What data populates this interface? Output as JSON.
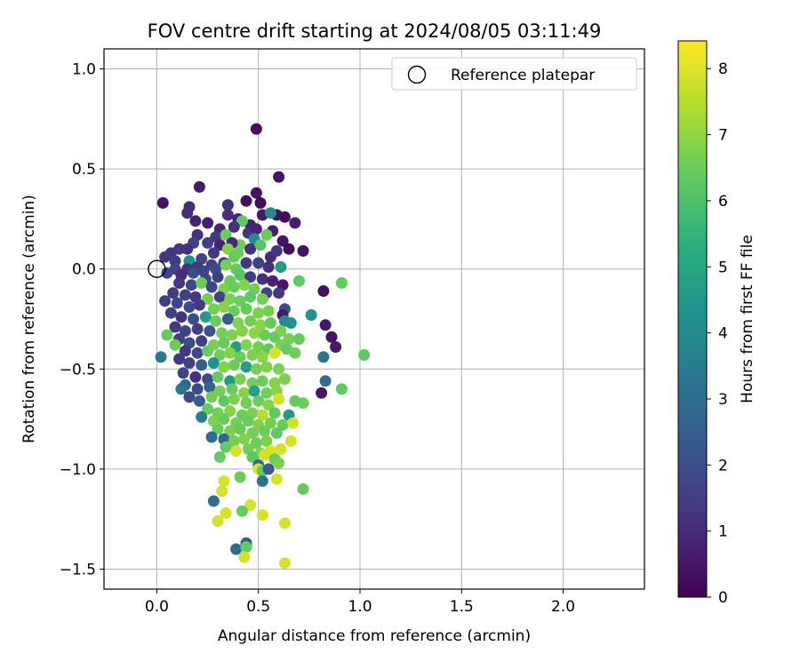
{
  "chart_data": {
    "type": "scatter",
    "title": "FOV centre drift starting at 2024/08/05 03:11:49",
    "xlabel": "Angular distance from reference (arcmin)",
    "ylabel": "Rotation from reference (arcmin)",
    "xlim": [
      -0.26,
      2.4
    ],
    "ylim": [
      -1.6,
      1.1
    ],
    "xticks": [
      0.0,
      0.5,
      1.0,
      1.5,
      2.0
    ],
    "xtick_labels": [
      "0.0",
      "0.5",
      "1.0",
      "1.5",
      "2.0"
    ],
    "yticks": [
      -1.5,
      -1.0,
      -0.5,
      0.0,
      0.5,
      1.0
    ],
    "ytick_labels": [
      "−1.5",
      "−1.0",
      "−0.5",
      "0.0",
      "0.5",
      "1.0"
    ],
    "grid": true,
    "legend": {
      "position": "top-right",
      "entries": [
        "Reference platepar"
      ]
    },
    "reference_point": {
      "x": 0.0,
      "y": 0.0
    },
    "colorbar": {
      "label": "Hours from first FF file",
      "colormap": "viridis",
      "range": [
        0,
        8.42
      ],
      "ticks": [
        0,
        1,
        2,
        3,
        4,
        5,
        6,
        7,
        8
      ],
      "tick_labels": [
        "0",
        "1",
        "2",
        "3",
        "4",
        "5",
        "6",
        "7",
        "8"
      ]
    },
    "points": [
      [
        0.49,
        0.7,
        0.3
      ],
      [
        0.6,
        0.46,
        0.5
      ],
      [
        0.21,
        0.41,
        0.6
      ],
      [
        0.03,
        0.33,
        0.4
      ],
      [
        0.49,
        0.38,
        0.4
      ],
      [
        0.44,
        0.34,
        0.3
      ],
      [
        0.35,
        0.32,
        1.2
      ],
      [
        0.51,
        0.33,
        0.2
      ],
      [
        0.16,
        0.31,
        1.0
      ],
      [
        0.15,
        0.28,
        1.0
      ],
      [
        0.4,
        0.25,
        0.9
      ],
      [
        0.46,
        0.22,
        0.8
      ],
      [
        0.25,
        0.23,
        0.7
      ],
      [
        0.31,
        0.2,
        0.9
      ],
      [
        0.19,
        0.24,
        0.8
      ],
      [
        0.35,
        0.27,
        1.1
      ],
      [
        0.52,
        0.27,
        0.6
      ],
      [
        0.59,
        0.27,
        0.4
      ],
      [
        0.63,
        0.26,
        0.2
      ],
      [
        0.68,
        0.23,
        0.7
      ],
      [
        0.56,
        0.28,
        4.0
      ],
      [
        0.42,
        0.24,
        6.3
      ],
      [
        0.38,
        0.21,
        1.2
      ],
      [
        0.45,
        0.18,
        1.2
      ],
      [
        0.49,
        0.2,
        0.9
      ],
      [
        0.29,
        0.16,
        1.4
      ],
      [
        0.2,
        0.17,
        1.1
      ],
      [
        0.34,
        0.17,
        6.5
      ],
      [
        0.57,
        0.19,
        0.7
      ],
      [
        0.62,
        0.14,
        0.5
      ],
      [
        0.54,
        0.17,
        6.5
      ],
      [
        0.48,
        0.15,
        4.0
      ],
      [
        0.41,
        0.12,
        6.6
      ],
      [
        0.37,
        0.13,
        1.0
      ],
      [
        0.31,
        0.12,
        0.8
      ],
      [
        0.25,
        0.13,
        1.6
      ],
      [
        0.18,
        0.13,
        1.6
      ],
      [
        0.11,
        0.1,
        1.3
      ],
      [
        0.15,
        0.1,
        1.1
      ],
      [
        0.07,
        0.08,
        1.3
      ],
      [
        0.04,
        0.06,
        1.3
      ],
      [
        0.09,
        0.04,
        1.4
      ],
      [
        0.16,
        0.04,
        4.2
      ],
      [
        0.22,
        0.05,
        1.7
      ],
      [
        0.28,
        0.08,
        1.4
      ],
      [
        0.35,
        0.1,
        6.8
      ],
      [
        0.4,
        0.08,
        6.5
      ],
      [
        0.46,
        0.1,
        1.2
      ],
      [
        0.51,
        0.12,
        6.2
      ],
      [
        0.56,
        0.06,
        1.0
      ],
      [
        0.59,
        0.09,
        1.3
      ],
      [
        0.65,
        0.1,
        0.2
      ],
      [
        0.72,
        0.09,
        0.4
      ],
      [
        0.38,
        0.06,
        6.5
      ],
      [
        0.33,
        0.03,
        1.5
      ],
      [
        0.27,
        0.02,
        1.6
      ],
      [
        0.2,
        0.01,
        1.4
      ],
      [
        0.15,
        0.0,
        1.2
      ],
      [
        0.09,
        0.0,
        1.7
      ],
      [
        0.05,
        -0.02,
        1.8
      ],
      [
        0.12,
        -0.03,
        1.0
      ],
      [
        0.18,
        -0.02,
        2.0
      ],
      [
        0.23,
        -0.01,
        1.7
      ],
      [
        0.29,
        0.0,
        1.9
      ],
      [
        0.34,
        0.02,
        6.6
      ],
      [
        0.39,
        0.0,
        6.4
      ],
      [
        0.44,
        0.03,
        1.4
      ],
      [
        0.5,
        0.03,
        1.6
      ],
      [
        0.55,
        0.01,
        1.1
      ],
      [
        0.61,
        0.01,
        4.5
      ],
      [
        0.24,
        -0.05,
        1.8
      ],
      [
        0.3,
        -0.04,
        1.5
      ],
      [
        0.36,
        -0.06,
        6.5
      ],
      [
        0.41,
        -0.03,
        6.2
      ],
      [
        0.46,
        -0.04,
        1.5
      ],
      [
        0.52,
        -0.05,
        1.2
      ],
      [
        0.57,
        -0.06,
        0.8
      ],
      [
        0.62,
        -0.08,
        0.5
      ],
      [
        0.7,
        -0.06,
        6.3
      ],
      [
        0.91,
        -0.07,
        6.4
      ],
      [
        0.11,
        -0.07,
        1.3
      ],
      [
        0.17,
        -0.08,
        1.7
      ],
      [
        0.22,
        -0.07,
        6.5
      ],
      [
        0.27,
        -0.09,
        1.8
      ],
      [
        0.33,
        -0.1,
        6.7
      ],
      [
        0.38,
        -0.09,
        6.4
      ],
      [
        0.43,
        -0.08,
        6.8
      ],
      [
        0.48,
        -0.1,
        6.6
      ],
      [
        0.54,
        -0.12,
        1.6
      ],
      [
        0.6,
        -0.12,
        1.4
      ],
      [
        0.08,
        -0.12,
        1.4
      ],
      [
        0.14,
        -0.13,
        1.6
      ],
      [
        0.19,
        -0.14,
        1.4
      ],
      [
        0.25,
        -0.15,
        6.6
      ],
      [
        0.31,
        -0.14,
        1.7
      ],
      [
        0.36,
        -0.15,
        6.7
      ],
      [
        0.41,
        -0.16,
        6.5
      ],
      [
        0.46,
        -0.14,
        6.3
      ],
      [
        0.52,
        -0.15,
        6.6
      ],
      [
        0.82,
        -0.11,
        0.3
      ],
      [
        0.04,
        -0.16,
        1.5
      ],
      [
        0.1,
        -0.17,
        1.8
      ],
      [
        0.16,
        -0.19,
        1.9
      ],
      [
        0.21,
        -0.18,
        1.4
      ],
      [
        0.28,
        -0.2,
        6.6
      ],
      [
        0.33,
        -0.19,
        6.8
      ],
      [
        0.38,
        -0.21,
        6.5
      ],
      [
        0.44,
        -0.2,
        6.4
      ],
      [
        0.5,
        -0.22,
        6.7
      ],
      [
        0.55,
        -0.21,
        6.6
      ],
      [
        0.63,
        -0.2,
        2.0
      ],
      [
        0.62,
        -0.23,
        0.6
      ],
      [
        0.07,
        -0.22,
        1.6
      ],
      [
        0.12,
        -0.24,
        1.2
      ],
      [
        0.18,
        -0.25,
        2.0
      ],
      [
        0.24,
        -0.24,
        4.5
      ],
      [
        0.29,
        -0.26,
        6.5
      ],
      [
        0.35,
        -0.25,
        2.4
      ],
      [
        0.4,
        -0.27,
        6.8
      ],
      [
        0.46,
        -0.26,
        6.6
      ],
      [
        0.51,
        -0.28,
        6.9
      ],
      [
        0.56,
        -0.27,
        6.4
      ],
      [
        0.63,
        -0.26,
        4.0
      ],
      [
        0.66,
        -0.27,
        4.2
      ],
      [
        0.76,
        -0.23,
        4.2
      ],
      [
        0.09,
        -0.29,
        1.4
      ],
      [
        0.14,
        -0.31,
        1.7
      ],
      [
        0.2,
        -0.3,
        1.6
      ],
      [
        0.26,
        -0.31,
        2.2
      ],
      [
        0.32,
        -0.32,
        6.6
      ],
      [
        0.37,
        -0.33,
        6.7
      ],
      [
        0.42,
        -0.31,
        6.8
      ],
      [
        0.48,
        -0.32,
        6.9
      ],
      [
        0.53,
        -0.33,
        6.5
      ],
      [
        0.58,
        -0.34,
        6.4
      ],
      [
        0.61,
        -0.31,
        6.7
      ],
      [
        0.65,
        -0.35,
        6.6
      ],
      [
        0.83,
        -0.28,
        0.6
      ],
      [
        0.11,
        -0.35,
        1.5
      ],
      [
        0.16,
        -0.37,
        1.9
      ],
      [
        0.22,
        -0.36,
        1.6
      ],
      [
        0.28,
        -0.38,
        6.7
      ],
      [
        0.33,
        -0.37,
        6.4
      ],
      [
        0.39,
        -0.39,
        4.6
      ],
      [
        0.44,
        -0.38,
        6.8
      ],
      [
        0.5,
        -0.39,
        6.6
      ],
      [
        0.55,
        -0.4,
        6.3
      ],
      [
        0.61,
        -0.38,
        6.7
      ],
      [
        0.7,
        -0.35,
        6.4
      ],
      [
        0.86,
        -0.34,
        0.4
      ],
      [
        0.05,
        -0.33,
        6.4
      ],
      [
        0.09,
        -0.38,
        6.5
      ],
      [
        0.14,
        -0.41,
        1.3
      ],
      [
        0.2,
        -0.42,
        1.8
      ],
      [
        0.25,
        -0.41,
        6.4
      ],
      [
        0.31,
        -0.43,
        6.6
      ],
      [
        0.36,
        -0.42,
        6.8
      ],
      [
        0.41,
        -0.44,
        6.5
      ],
      [
        0.47,
        -0.43,
        6.7
      ],
      [
        0.52,
        -0.44,
        6.9
      ],
      [
        0.58,
        -0.42,
        7.9
      ],
      [
        0.64,
        -0.4,
        6.4
      ],
      [
        0.68,
        -0.42,
        6.6
      ],
      [
        0.88,
        -0.39,
        0.6
      ],
      [
        0.82,
        -0.44,
        3.2
      ],
      [
        1.02,
        -0.43,
        6.3
      ],
      [
        0.02,
        -0.44,
        3.4
      ],
      [
        0.11,
        -0.45,
        1.4
      ],
      [
        0.16,
        -0.47,
        1.6
      ],
      [
        0.22,
        -0.48,
        2.4
      ],
      [
        0.28,
        -0.47,
        4.2
      ],
      [
        0.33,
        -0.49,
        6.8
      ],
      [
        0.38,
        -0.48,
        6.5
      ],
      [
        0.44,
        -0.49,
        4.7
      ],
      [
        0.49,
        -0.5,
        6.6
      ],
      [
        0.54,
        -0.49,
        6.8
      ],
      [
        0.6,
        -0.5,
        6.7
      ],
      [
        0.13,
        -0.52,
        1.7
      ],
      [
        0.19,
        -0.54,
        1.2
      ],
      [
        0.25,
        -0.55,
        1.9
      ],
      [
        0.3,
        -0.54,
        6.4
      ],
      [
        0.36,
        -0.56,
        4.5
      ],
      [
        0.41,
        -0.55,
        6.7
      ],
      [
        0.47,
        -0.57,
        6.6
      ],
      [
        0.52,
        -0.56,
        6.5
      ],
      [
        0.58,
        -0.57,
        6.8
      ],
      [
        0.63,
        -0.55,
        6.7
      ],
      [
        0.14,
        -0.58,
        2.8
      ],
      [
        0.2,
        -0.6,
        1.9
      ],
      [
        0.26,
        -0.59,
        2.7
      ],
      [
        0.31,
        -0.61,
        6.6
      ],
      [
        0.37,
        -0.6,
        6.4
      ],
      [
        0.43,
        -0.62,
        6.8
      ],
      [
        0.48,
        -0.61,
        4.8
      ],
      [
        0.54,
        -0.62,
        6.6
      ],
      [
        0.59,
        -0.61,
        6.9
      ],
      [
        0.83,
        -0.56,
        3.0
      ],
      [
        0.12,
        -0.6,
        3.3
      ],
      [
        0.16,
        -0.64,
        1.9
      ],
      [
        0.21,
        -0.66,
        2.4
      ],
      [
        0.27,
        -0.64,
        6.6
      ],
      [
        0.33,
        -0.66,
        6.3
      ],
      [
        0.38,
        -0.65,
        6.7
      ],
      [
        0.44,
        -0.67,
        6.6
      ],
      [
        0.5,
        -0.66,
        6.5
      ],
      [
        0.55,
        -0.68,
        6.8
      ],
      [
        0.6,
        -0.65,
        7.9
      ],
      [
        0.68,
        -0.66,
        6.4
      ],
      [
        0.72,
        -0.67,
        6.5
      ],
      [
        0.91,
        -0.6,
        6.3
      ],
      [
        0.81,
        -0.62,
        0.5
      ],
      [
        0.25,
        -0.7,
        6.4
      ],
      [
        0.3,
        -0.72,
        6.6
      ],
      [
        0.36,
        -0.71,
        6.8
      ],
      [
        0.42,
        -0.73,
        6.5
      ],
      [
        0.47,
        -0.72,
        6.7
      ],
      [
        0.52,
        -0.73,
        7.5
      ],
      [
        0.58,
        -0.72,
        6.3
      ],
      [
        0.65,
        -0.73,
        4.5
      ],
      [
        0.22,
        -0.74,
        3.5
      ],
      [
        0.28,
        -0.76,
        6.7
      ],
      [
        0.33,
        -0.75,
        6.4
      ],
      [
        0.39,
        -0.77,
        6.6
      ],
      [
        0.45,
        -0.76,
        6.5
      ],
      [
        0.5,
        -0.78,
        6.8
      ],
      [
        0.56,
        -0.77,
        6.6
      ],
      [
        0.62,
        -0.78,
        6.4
      ],
      [
        0.67,
        -0.77,
        7.9
      ],
      [
        0.3,
        -0.8,
        6.5
      ],
      [
        0.36,
        -0.81,
        6.7
      ],
      [
        0.41,
        -0.8,
        6.4
      ],
      [
        0.47,
        -0.82,
        6.6
      ],
      [
        0.53,
        -0.81,
        6.5
      ],
      [
        0.59,
        -0.82,
        6.3
      ],
      [
        0.27,
        -0.84,
        3.0
      ],
      [
        0.33,
        -0.85,
        2.8
      ],
      [
        0.38,
        -0.86,
        6.6
      ],
      [
        0.43,
        -0.85,
        6.8
      ],
      [
        0.49,
        -0.87,
        6.5
      ],
      [
        0.54,
        -0.86,
        6.7
      ],
      [
        0.66,
        -0.86,
        7.9
      ],
      [
        0.34,
        -0.89,
        6.4
      ],
      [
        0.39,
        -0.91,
        7.9
      ],
      [
        0.45,
        -0.9,
        6.6
      ],
      [
        0.51,
        -0.92,
        6.8
      ],
      [
        0.56,
        -0.91,
        7.9
      ],
      [
        0.61,
        -0.9,
        7.9
      ],
      [
        0.31,
        -0.94,
        6.4
      ],
      [
        0.47,
        -0.94,
        6.3
      ],
      [
        0.53,
        -0.93,
        7.9
      ],
      [
        0.58,
        -0.95,
        6.5
      ],
      [
        0.6,
        -0.97,
        6.7
      ],
      [
        0.5,
        -0.98,
        3.0
      ],
      [
        0.5,
        -1.0,
        8.0
      ],
      [
        0.52,
        -1.01,
        6.4
      ],
      [
        0.55,
        -1.0,
        2.4
      ],
      [
        0.52,
        -1.06,
        3.2
      ],
      [
        0.59,
        -1.05,
        7.9
      ],
      [
        0.41,
        -1.04,
        6.5
      ],
      [
        0.33,
        -1.06,
        7.9
      ],
      [
        0.32,
        -1.11,
        7.9
      ],
      [
        0.72,
        -1.1,
        6.4
      ],
      [
        0.28,
        -1.16,
        3.0
      ],
      [
        0.46,
        -1.18,
        7.9
      ],
      [
        0.42,
        -1.21,
        6.4
      ],
      [
        0.34,
        -1.22,
        7.9
      ],
      [
        0.3,
        -1.26,
        7.9
      ],
      [
        0.52,
        -1.23,
        7.9
      ],
      [
        0.63,
        -1.27,
        7.9
      ],
      [
        0.44,
        -1.37,
        2.0
      ],
      [
        0.44,
        -1.38,
        3.0
      ],
      [
        0.39,
        -1.4,
        3.0
      ],
      [
        0.44,
        -1.39,
        6.4
      ],
      [
        0.43,
        -1.44,
        7.9
      ],
      [
        0.63,
        -1.47,
        7.9
      ]
    ]
  }
}
